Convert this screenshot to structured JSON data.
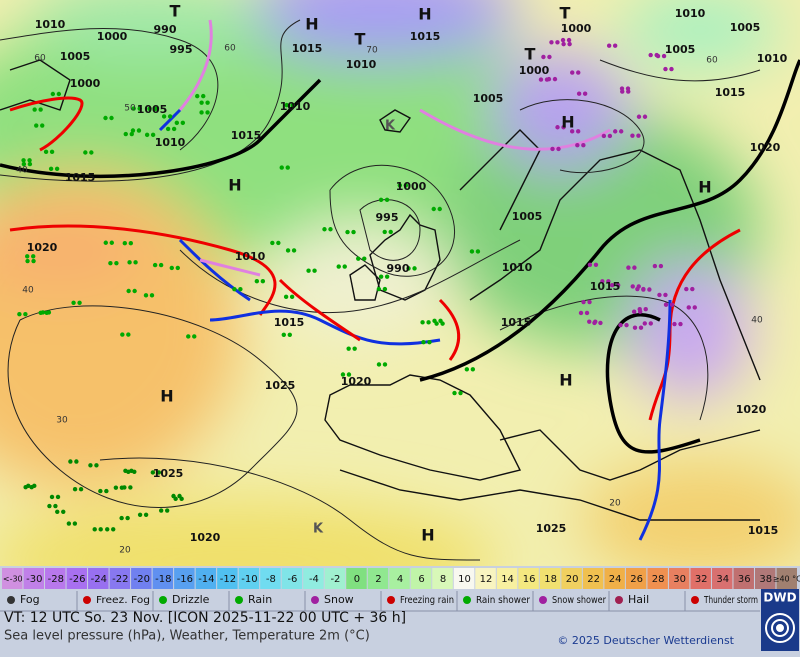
{
  "map": {
    "pressure_labels": [
      1010,
      1000,
      990,
      995,
      1005,
      1000,
      1005,
      1010,
      1015,
      1015,
      1010,
      1015,
      1010,
      1015,
      1000,
      1010,
      1005,
      1005,
      1010,
      1000,
      1005,
      1015,
      1020,
      1000,
      995,
      990,
      1005,
      1010,
      1015,
      1015,
      1010,
      1015,
      1020,
      1025,
      1020,
      1020,
      1025,
      1025,
      1020,
      1015
    ],
    "isotherm_labels": [
      60,
      50,
      40,
      40,
      30,
      20,
      20,
      40,
      60,
      70,
      60
    ],
    "high_labels": [
      "H",
      "H",
      "H",
      "H",
      "H",
      "H",
      "H",
      "H"
    ],
    "trough_labels": [
      "T",
      "T",
      "T",
      "T"
    ],
    "cold_labels": [
      "K",
      "K"
    ]
  },
  "temperature_scale": {
    "labels": [
      "<-30",
      "-30",
      "-28",
      "-26",
      "-24",
      "-22",
      "-20",
      "-18",
      "-16",
      "-14",
      "-12",
      "-10",
      "-8",
      "-6",
      "-4",
      "-2",
      "0",
      "2",
      "4",
      "6",
      "8",
      "10",
      "12",
      "14",
      "16",
      "18",
      "20",
      "22",
      "24",
      "26",
      "28",
      "30",
      "32",
      "34",
      "36",
      "38",
      "≥40 °C"
    ]
  },
  "legend": {
    "items": [
      "Fog",
      "Freez. Fog",
      "Drizzle",
      "Rain",
      "Snow",
      "Freezing rain",
      "Rain shower",
      "Snow shower",
      "Hail",
      "Thunder storm"
    ]
  },
  "footer": {
    "valid_time": "VT: 12 UTC So.  23 Nov. [ICON 2025-11-22  00 UTC + 36 h]",
    "description": "Sea level pressure (hPa), Weather, Temperature 2m (°C)",
    "copyright": "© 2025 Deutscher Wetterdienst",
    "logo": "DWD"
  }
}
